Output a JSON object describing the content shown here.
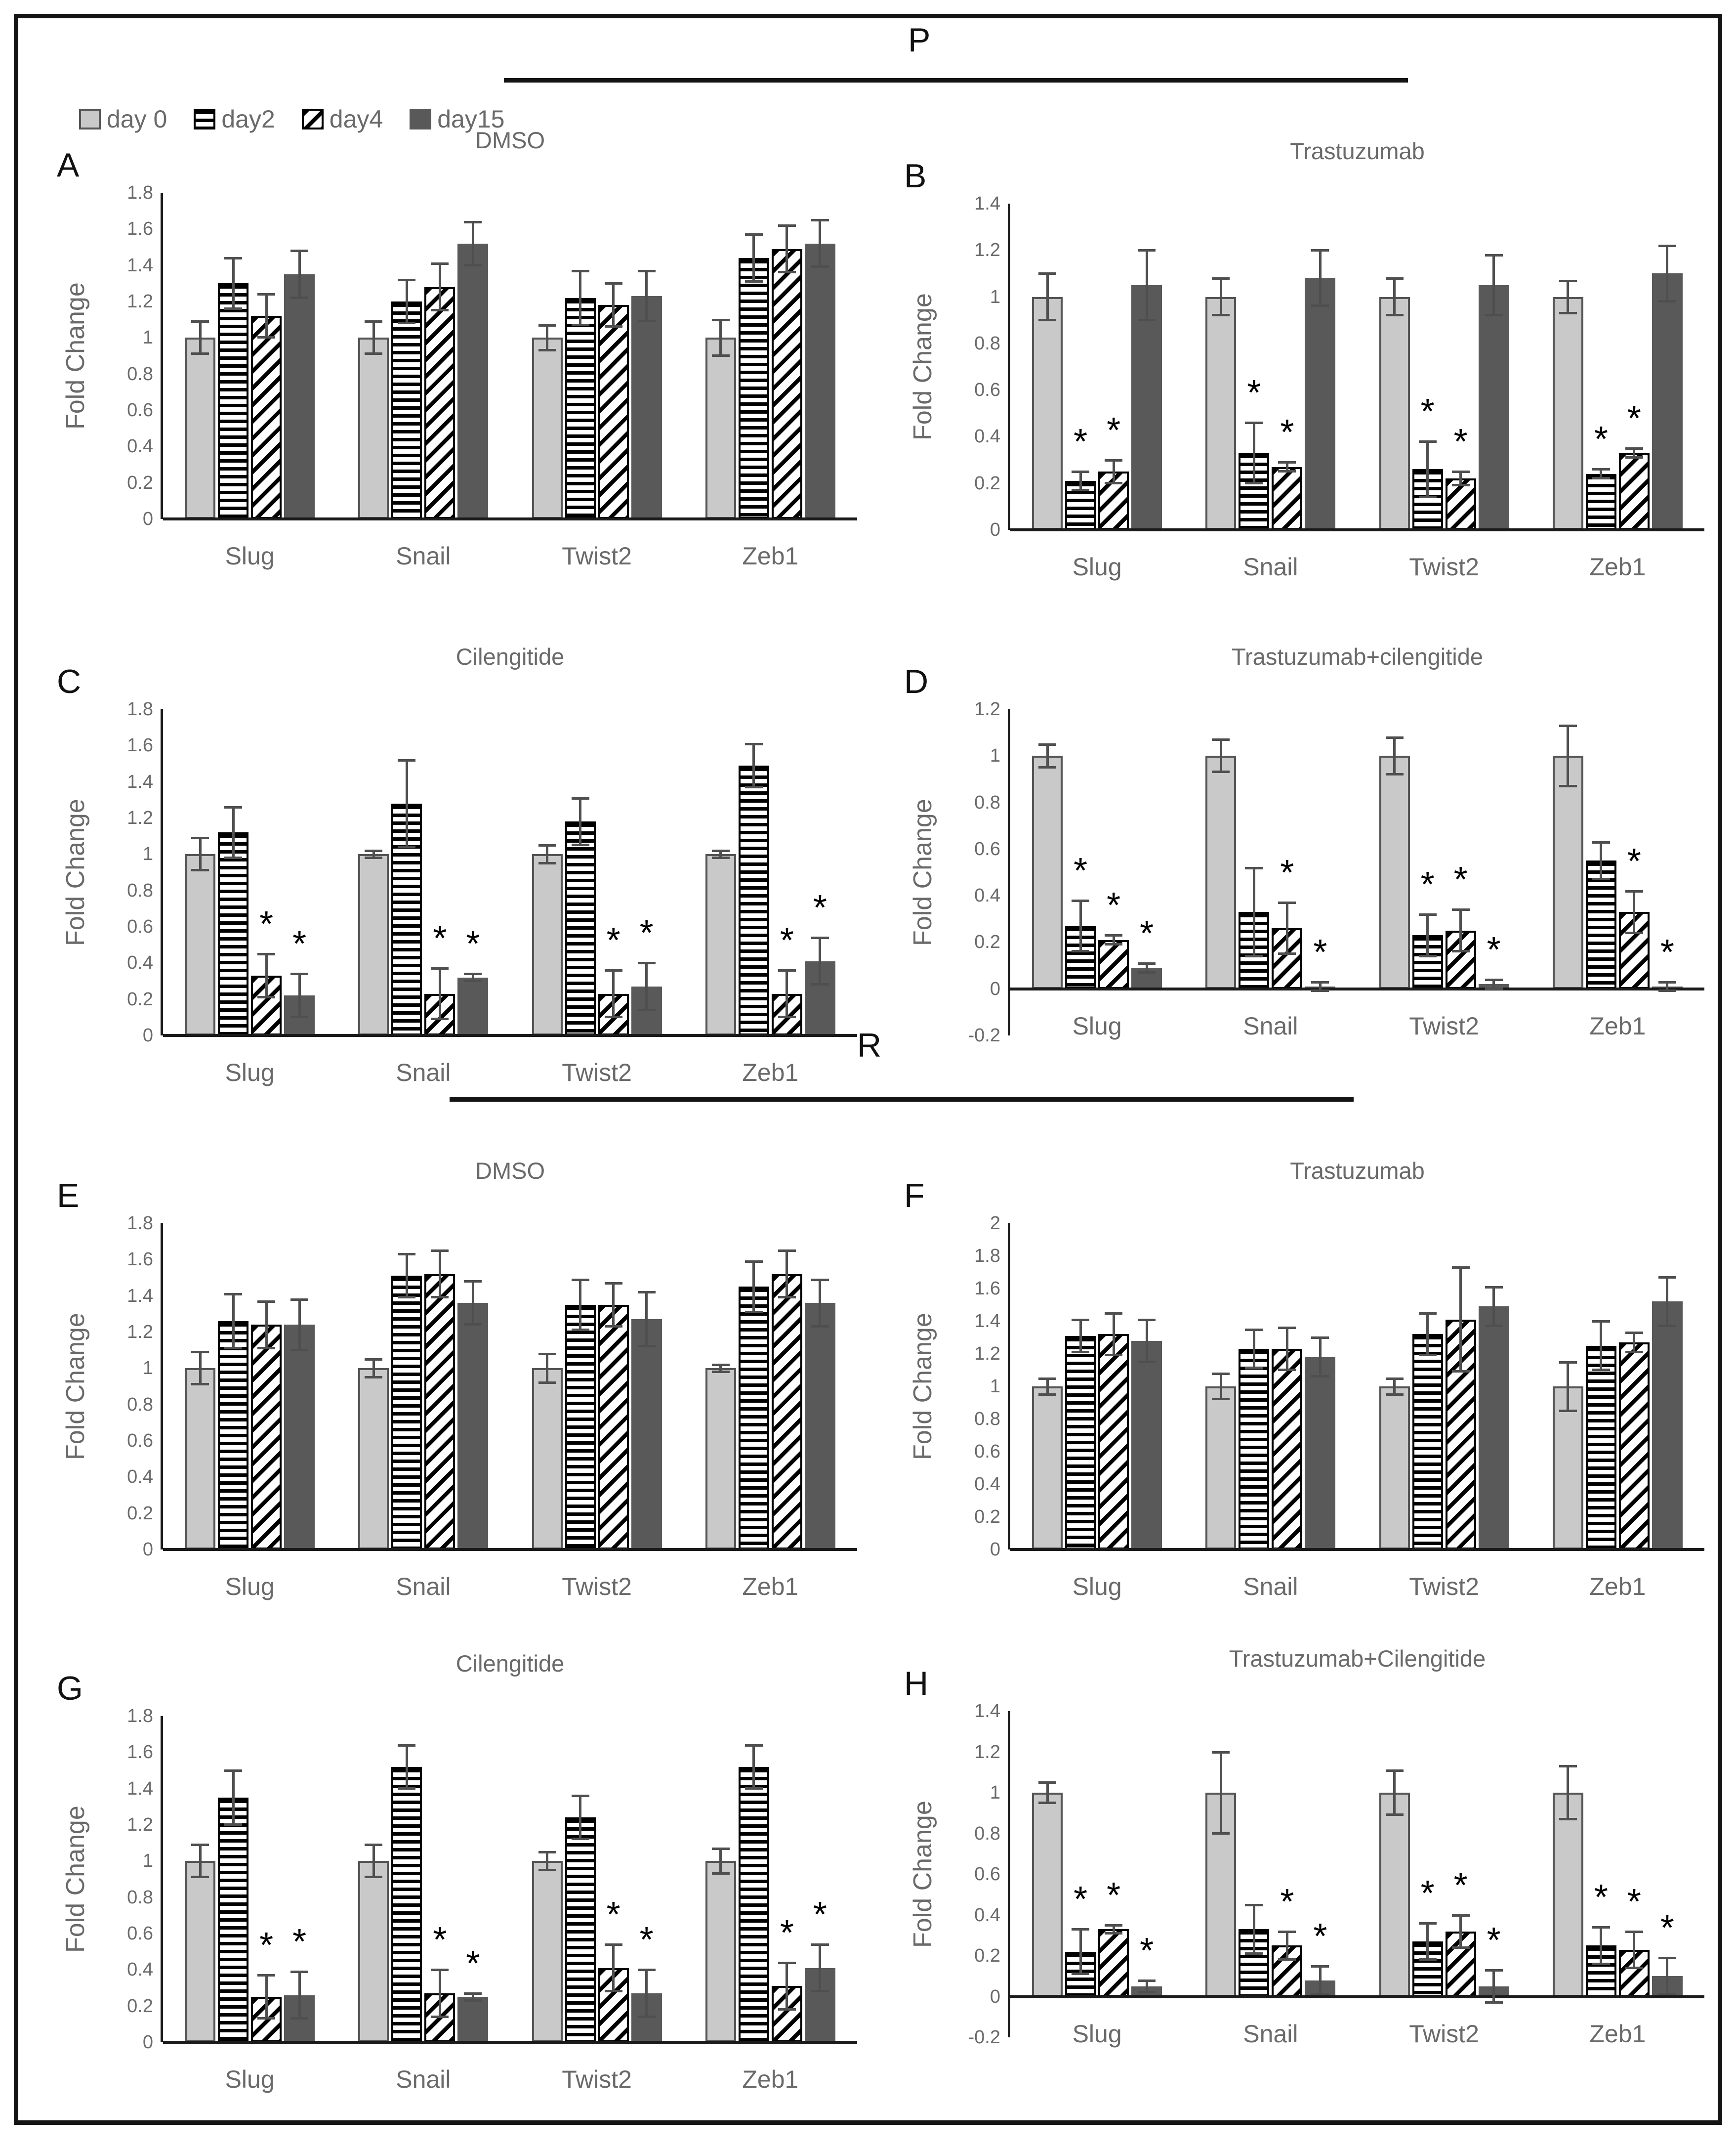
{
  "figure": {
    "section_top": {
      "label": "P"
    },
    "section_bottom": {
      "label": "R"
    },
    "legend": {
      "items": [
        {
          "label": "day 0"
        },
        {
          "label": "day2"
        },
        {
          "label": "day4"
        },
        {
          "label": "day15"
        }
      ]
    },
    "colors": {
      "bar_day0": "#c9c9c9",
      "bar_day0_border": "#555555",
      "bar_day15": "#595959",
      "hatch_black": "#000000",
      "error_bar": "#4f4f4f",
      "text_gray": "#6a6a6a",
      "axis": "#1a1a1a"
    }
  },
  "chart_data": [
    {
      "id": "A",
      "type": "bar",
      "section": "P",
      "title": "DMSO",
      "ylabel": "Fold Change",
      "categories": [
        "Slug",
        "Snail",
        "Twist2",
        "Zeb1"
      ],
      "ylim": [
        0,
        1.8
      ],
      "ytick_step": 0.2,
      "grid": false,
      "legend_position": "top-left-of-figure",
      "series": [
        {
          "name": "day 0",
          "pattern": "solid-light",
          "values": [
            1.0,
            1.0,
            1.0,
            1.0
          ],
          "errors": [
            0.09,
            0.09,
            0.07,
            0.1
          ],
          "sig": [
            false,
            false,
            false,
            false
          ]
        },
        {
          "name": "day2",
          "pattern": "horizontal-stripes",
          "values": [
            1.3,
            1.2,
            1.22,
            1.44
          ],
          "errors": [
            0.14,
            0.12,
            0.15,
            0.13
          ],
          "sig": [
            false,
            false,
            false,
            false
          ]
        },
        {
          "name": "day4",
          "pattern": "diagonal-stripes",
          "values": [
            1.12,
            1.28,
            1.18,
            1.49
          ],
          "errors": [
            0.12,
            0.13,
            0.12,
            0.13
          ],
          "sig": [
            false,
            false,
            false,
            false
          ]
        },
        {
          "name": "day15",
          "pattern": "solid-dark",
          "values": [
            1.35,
            1.52,
            1.23,
            1.52
          ],
          "errors": [
            0.13,
            0.12,
            0.14,
            0.13
          ],
          "sig": [
            false,
            false,
            false,
            false
          ]
        }
      ]
    },
    {
      "id": "B",
      "type": "bar",
      "section": "P",
      "title": "Trastuzumab",
      "ylabel": "Fold Change",
      "categories": [
        "Slug",
        "Snail",
        "Twist2",
        "Zeb1"
      ],
      "ylim": [
        0,
        1.4
      ],
      "ytick_step": 0.2,
      "grid": false,
      "series": [
        {
          "name": "day 0",
          "pattern": "solid-light",
          "values": [
            1.0,
            1.0,
            1.0,
            1.0
          ],
          "errors": [
            0.1,
            0.08,
            0.08,
            0.07
          ],
          "sig": [
            false,
            false,
            false,
            false
          ]
        },
        {
          "name": "day2",
          "pattern": "horizontal-stripes",
          "values": [
            0.21,
            0.33,
            0.26,
            0.24
          ],
          "errors": [
            0.04,
            0.13,
            0.12,
            0.02
          ],
          "sig": [
            true,
            true,
            true,
            true
          ]
        },
        {
          "name": "day4",
          "pattern": "diagonal-stripes",
          "values": [
            0.25,
            0.27,
            0.22,
            0.33
          ],
          "errors": [
            0.05,
            0.02,
            0.03,
            0.02
          ],
          "sig": [
            true,
            true,
            true,
            true
          ]
        },
        {
          "name": "day15",
          "pattern": "solid-dark",
          "values": [
            1.05,
            1.08,
            1.05,
            1.1
          ],
          "errors": [
            0.15,
            0.12,
            0.13,
            0.12
          ],
          "sig": [
            false,
            false,
            false,
            false
          ]
        }
      ]
    },
    {
      "id": "C",
      "type": "bar",
      "section": "P",
      "title": "Cilengitide",
      "ylabel": "Fold Change",
      "categories": [
        "Slug",
        "Snail",
        "Twist2",
        "Zeb1"
      ],
      "ylim": [
        0,
        1.8
      ],
      "ytick_step": 0.2,
      "grid": false,
      "series": [
        {
          "name": "day 0",
          "pattern": "solid-light",
          "values": [
            1.0,
            1.0,
            1.0,
            1.0
          ],
          "errors": [
            0.09,
            0.02,
            0.05,
            0.02
          ],
          "sig": [
            false,
            false,
            false,
            false
          ]
        },
        {
          "name": "day2",
          "pattern": "horizontal-stripes",
          "values": [
            1.12,
            1.28,
            1.18,
            1.49
          ],
          "errors": [
            0.14,
            0.24,
            0.13,
            0.12
          ],
          "sig": [
            false,
            false,
            false,
            false
          ]
        },
        {
          "name": "day4",
          "pattern": "diagonal-stripes",
          "values": [
            0.33,
            0.23,
            0.23,
            0.23
          ],
          "errors": [
            0.12,
            0.14,
            0.13,
            0.13
          ],
          "sig": [
            true,
            true,
            true,
            true
          ]
        },
        {
          "name": "day15",
          "pattern": "solid-dark",
          "values": [
            0.22,
            0.32,
            0.27,
            0.41
          ],
          "errors": [
            0.12,
            0.02,
            0.13,
            0.13
          ],
          "sig": [
            true,
            true,
            true,
            true
          ]
        }
      ]
    },
    {
      "id": "D",
      "type": "bar",
      "section": "P",
      "title": "Trastuzumab+cilengitide",
      "ylabel": "Fold Change",
      "categories": [
        "Slug",
        "Snail",
        "Twist2",
        "Zeb1"
      ],
      "ylim": [
        -0.2,
        1.2
      ],
      "ytick_step": 0.2,
      "grid": false,
      "series": [
        {
          "name": "day 0",
          "pattern": "solid-light",
          "values": [
            1.0,
            1.0,
            1.0,
            1.0
          ],
          "errors": [
            0.05,
            0.07,
            0.08,
            0.13
          ],
          "sig": [
            false,
            false,
            false,
            false
          ]
        },
        {
          "name": "day2",
          "pattern": "horizontal-stripes",
          "values": [
            0.27,
            0.33,
            0.23,
            0.55
          ],
          "errors": [
            0.11,
            0.19,
            0.09,
            0.08
          ],
          "sig": [
            true,
            false,
            true,
            false
          ]
        },
        {
          "name": "day4",
          "pattern": "diagonal-stripes",
          "values": [
            0.21,
            0.26,
            0.25,
            0.33
          ],
          "errors": [
            0.02,
            0.11,
            0.09,
            0.09
          ],
          "sig": [
            true,
            true,
            true,
            true
          ]
        },
        {
          "name": "day15",
          "pattern": "solid-dark",
          "values": [
            0.09,
            0.01,
            0.02,
            0.01
          ],
          "errors": [
            0.02,
            0.02,
            0.02,
            0.02
          ],
          "sig": [
            true,
            true,
            true,
            true
          ]
        }
      ]
    },
    {
      "id": "E",
      "type": "bar",
      "section": "R",
      "title": "DMSO",
      "ylabel": "Fold Change",
      "categories": [
        "Slug",
        "Snail",
        "Twist2",
        "Zeb1"
      ],
      "ylim": [
        0,
        1.8
      ],
      "ytick_step": 0.2,
      "grid": false,
      "series": [
        {
          "name": "day 0",
          "pattern": "solid-light",
          "values": [
            1.0,
            1.0,
            1.0,
            1.0
          ],
          "errors": [
            0.09,
            0.05,
            0.08,
            0.02
          ],
          "sig": [
            false,
            false,
            false,
            false
          ]
        },
        {
          "name": "day2",
          "pattern": "horizontal-stripes",
          "values": [
            1.26,
            1.51,
            1.35,
            1.45
          ],
          "errors": [
            0.15,
            0.12,
            0.14,
            0.14
          ],
          "sig": [
            false,
            false,
            false,
            false
          ]
        },
        {
          "name": "day4",
          "pattern": "diagonal-stripes",
          "values": [
            1.24,
            1.52,
            1.35,
            1.52
          ],
          "errors": [
            0.13,
            0.13,
            0.12,
            0.13
          ],
          "sig": [
            false,
            false,
            false,
            false
          ]
        },
        {
          "name": "day15",
          "pattern": "solid-dark",
          "values": [
            1.24,
            1.36,
            1.27,
            1.36
          ],
          "errors": [
            0.14,
            0.12,
            0.15,
            0.13
          ],
          "sig": [
            false,
            false,
            false,
            false
          ]
        }
      ]
    },
    {
      "id": "F",
      "type": "bar",
      "section": "R",
      "title": "Trastuzumab",
      "ylabel": "Fold Change",
      "categories": [
        "Slug",
        "Snail",
        "Twist2",
        "Zeb1"
      ],
      "ylim": [
        0,
        2.0
      ],
      "ytick_step": 0.2,
      "grid": false,
      "series": [
        {
          "name": "day 0",
          "pattern": "solid-light",
          "values": [
            1.0,
            1.0,
            1.0,
            1.0
          ],
          "errors": [
            0.05,
            0.08,
            0.05,
            0.15
          ],
          "sig": [
            false,
            false,
            false,
            false
          ]
        },
        {
          "name": "day2",
          "pattern": "horizontal-stripes",
          "values": [
            1.31,
            1.23,
            1.32,
            1.25
          ],
          "errors": [
            0.1,
            0.12,
            0.13,
            0.15
          ],
          "sig": [
            false,
            false,
            false,
            false
          ]
        },
        {
          "name": "day4",
          "pattern": "diagonal-stripes",
          "values": [
            1.32,
            1.23,
            1.41,
            1.27
          ],
          "errors": [
            0.13,
            0.13,
            0.32,
            0.06
          ],
          "sig": [
            false,
            false,
            false,
            false
          ]
        },
        {
          "name": "day15",
          "pattern": "solid-dark",
          "values": [
            1.28,
            1.18,
            1.49,
            1.52
          ],
          "errors": [
            0.13,
            0.12,
            0.12,
            0.15
          ],
          "sig": [
            false,
            false,
            false,
            false
          ]
        }
      ]
    },
    {
      "id": "G",
      "type": "bar",
      "section": "R",
      "title": "Cilengitide",
      "ylabel": "Fold Change",
      "categories": [
        "Slug",
        "Snail",
        "Twist2",
        "Zeb1"
      ],
      "ylim": [
        0,
        1.8
      ],
      "ytick_step": 0.2,
      "grid": false,
      "series": [
        {
          "name": "day 0",
          "pattern": "solid-light",
          "values": [
            1.0,
            1.0,
            1.0,
            1.0
          ],
          "errors": [
            0.09,
            0.09,
            0.05,
            0.07
          ],
          "sig": [
            false,
            false,
            false,
            false
          ]
        },
        {
          "name": "day2",
          "pattern": "horizontal-stripes",
          "values": [
            1.35,
            1.52,
            1.24,
            1.52
          ],
          "errors": [
            0.15,
            0.12,
            0.12,
            0.12
          ],
          "sig": [
            false,
            false,
            false,
            false
          ]
        },
        {
          "name": "day4",
          "pattern": "diagonal-stripes",
          "values": [
            0.25,
            0.27,
            0.41,
            0.31
          ],
          "errors": [
            0.12,
            0.13,
            0.13,
            0.13
          ],
          "sig": [
            true,
            true,
            true,
            true
          ]
        },
        {
          "name": "day15",
          "pattern": "solid-dark",
          "values": [
            0.26,
            0.25,
            0.27,
            0.41
          ],
          "errors": [
            0.13,
            0.02,
            0.13,
            0.13
          ],
          "sig": [
            true,
            true,
            true,
            true
          ]
        }
      ]
    },
    {
      "id": "H",
      "type": "bar",
      "section": "R",
      "title": "Trastuzumab+Cilengitide",
      "ylabel": "Fold Change",
      "categories": [
        "Slug",
        "Snail",
        "Twist2",
        "Zeb1"
      ],
      "ylim": [
        -0.2,
        1.4
      ],
      "ytick_step": 0.2,
      "grid": false,
      "series": [
        {
          "name": "day 0",
          "pattern": "solid-light",
          "values": [
            1.0,
            1.0,
            1.0,
            1.0
          ],
          "errors": [
            0.05,
            0.2,
            0.11,
            0.13
          ],
          "sig": [
            false,
            false,
            false,
            false
          ]
        },
        {
          "name": "day2",
          "pattern": "horizontal-stripes",
          "values": [
            0.22,
            0.33,
            0.27,
            0.25
          ],
          "errors": [
            0.11,
            0.12,
            0.09,
            0.09
          ],
          "sig": [
            true,
            false,
            true,
            true
          ]
        },
        {
          "name": "day4",
          "pattern": "diagonal-stripes",
          "values": [
            0.33,
            0.25,
            0.32,
            0.23
          ],
          "errors": [
            0.02,
            0.07,
            0.08,
            0.09
          ],
          "sig": [
            true,
            true,
            true,
            true
          ]
        },
        {
          "name": "day15",
          "pattern": "solid-dark",
          "values": [
            0.05,
            0.08,
            0.05,
            0.1
          ],
          "errors": [
            0.03,
            0.07,
            0.08,
            0.09
          ],
          "sig": [
            true,
            true,
            true,
            true
          ]
        }
      ]
    }
  ]
}
